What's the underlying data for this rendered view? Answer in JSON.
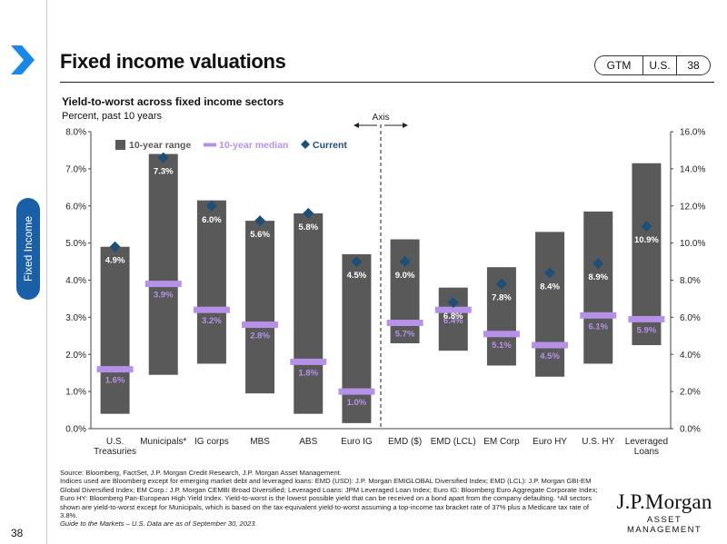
{
  "header": {
    "title": "Fixed income valuations",
    "badge": [
      "GTM",
      "U.S.",
      "38"
    ],
    "side_tab": "Fixed Income",
    "page_number": "38"
  },
  "chart_title": "Yield-to-worst across fixed income sectors",
  "chart_subtitle": "Percent, past 10 years",
  "chart_data": {
    "type": "bar",
    "title": "Yield-to-worst across fixed income sectors",
    "subtitle": "Percent, past 10 years",
    "categories": [
      "U.S.\nTreasuries",
      "Municipals*",
      "IG corps",
      "MBS",
      "ABS",
      "Euro IG",
      "EMD ($)",
      "EMD (LCL)",
      "EM Corp",
      "Euro HY",
      "U.S. HY",
      "Leveraged\nLoans"
    ],
    "axis": [
      "left",
      "left",
      "left",
      "left",
      "left",
      "left",
      "right",
      "right",
      "right",
      "right",
      "right",
      "right"
    ],
    "range_low": [
      0.4,
      1.45,
      1.75,
      0.95,
      0.4,
      0.15,
      4.6,
      4.2,
      3.4,
      2.8,
      3.5,
      4.5
    ],
    "range_high": [
      4.9,
      7.4,
      6.15,
      5.6,
      5.8,
      4.7,
      10.2,
      7.6,
      8.7,
      10.6,
      11.7,
      14.3
    ],
    "median": [
      1.6,
      3.9,
      3.2,
      2.8,
      1.8,
      1.0,
      5.7,
      6.4,
      5.1,
      4.5,
      6.1,
      5.9
    ],
    "current": [
      4.9,
      7.3,
      6.0,
      5.6,
      5.8,
      4.5,
      9.0,
      6.8,
      7.8,
      8.4,
      8.9,
      10.9
    ],
    "median_labels": [
      "1.6%",
      "3.9%",
      "3.2%",
      "2.8%",
      "1.8%",
      "1.0%",
      "5.7%",
      "6.4%",
      "5.1%",
      "4.5%",
      "6.1%",
      "5.9%"
    ],
    "current_labels": [
      "4.9%",
      "7.3%",
      "6.0%",
      "5.6%",
      "5.8%",
      "4.5%",
      "9.0%",
      "6.8%",
      "7.8%",
      "8.4%",
      "8.9%",
      "10.9%"
    ],
    "left_axis": {
      "ylim": [
        0,
        8
      ],
      "ticks": [
        "0.0%",
        "1.0%",
        "2.0%",
        "3.0%",
        "4.0%",
        "5.0%",
        "6.0%",
        "7.0%",
        "8.0%"
      ]
    },
    "right_axis": {
      "ylim": [
        0,
        16
      ],
      "ticks": [
        "0.0%",
        "2.0%",
        "4.0%",
        "6.0%",
        "8.0%",
        "10.0%",
        "12.0%",
        "14.0%",
        "16.0%"
      ]
    },
    "legend": [
      "10-year range",
      "10-year median",
      "Current"
    ],
    "axis_divider_label": "Axis",
    "colors": {
      "range": "#595959",
      "median": "#b691e8",
      "current": "#1f4e79"
    }
  },
  "footnote": {
    "source": "Source: Bloomberg, FactSet, J.P. Morgan Credit Research, J.P. Morgan Asset Management.",
    "notes": "Indices used are Bloomberg except for emerging market debt and leveraged loans: EMD (USD): J.P. Morgan EMIGLOBAL Diversified Index; EMD (LCL): J.P. Morgan GBI-EM Global Diversified Index; EM Corp.: J.P. Morgan CEMBI Broad Diversified; Leveraged Loans: JPM Leveraged Loan Index; Euro IG: Bloomberg Euro Aggregate Corporate Index; Euro HY: Bloomberg Pan-European High Yield Index. Yield-to-worst is the lowest possible yield that can be received on a bond apart from the company defaulting. *All sectors shown are yield-to-worst except for Municipals, which is based on the tax-equivalent yield-to-worst assuming a top-income tax bracket rate of 37% plus a Medicare tax rate of 3.8%.",
    "gtm": "Guide to the Markets – U.S. Data are as of September 30, 2023."
  },
  "logo": {
    "name": "J.P.Morgan",
    "sub": "ASSET MANAGEMENT"
  }
}
